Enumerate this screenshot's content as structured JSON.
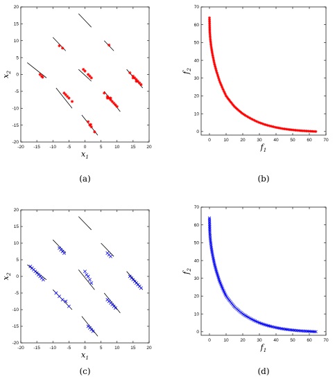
{
  "figure": {
    "panels": [
      {
        "id": "a",
        "caption": "(a)",
        "kind": "decision",
        "color": "#ff0000",
        "marker": "star",
        "xlabel": "x1",
        "ylabel": "x2"
      },
      {
        "id": "b",
        "caption": "(b)",
        "kind": "front",
        "color": "#ff0000",
        "marker": "star",
        "xlabel": "f1",
        "ylabel": "f2"
      },
      {
        "id": "c",
        "caption": "(c)",
        "kind": "decision",
        "color": "#0000ff",
        "marker": "x",
        "xlabel": "x1",
        "ylabel": "x2"
      },
      {
        "id": "d",
        "caption": "(d)",
        "kind": "front",
        "color": "#0000ff",
        "marker": "x",
        "xlabel": "f1",
        "ylabel": "f2"
      }
    ]
  },
  "chart_data": [
    {
      "panel": "a",
      "type": "scatter",
      "xlabel": "x1",
      "ylabel": "x2",
      "xlim": [
        -20,
        20
      ],
      "ylim": [
        -20,
        20
      ],
      "xticks": [
        -20,
        -15,
        -10,
        -5,
        0,
        5,
        10,
        15,
        20
      ],
      "yticks": [
        -20,
        -15,
        -10,
        -5,
        0,
        5,
        10,
        15,
        20
      ],
      "line_segments": [
        [
          [
            -2,
            18
          ],
          [
            2,
            14
          ]
        ],
        [
          [
            -10,
            11
          ],
          [
            -6,
            7
          ]
        ],
        [
          [
            6,
            10
          ],
          [
            9,
            7
          ]
        ],
        [
          [
            -18,
            3.5
          ],
          [
            -12,
            -1
          ]
        ],
        [
          [
            -2,
            1.5
          ],
          [
            2,
            -2
          ]
        ],
        [
          [
            13,
            1.5
          ],
          [
            18,
            -4
          ]
        ],
        [
          [
            -9,
            -4
          ],
          [
            -4,
            -10
          ]
        ],
        [
          [
            6,
            -5
          ],
          [
            11,
            -11
          ]
        ],
        [
          [
            -1,
            -12
          ],
          [
            4,
            -18
          ]
        ]
      ],
      "series": [
        {
          "color": "#ff0000",
          "marker": "star",
          "points": [
            [
              -8,
              8.5
            ],
            [
              -7,
              7.8
            ],
            [
              7.5,
              8.7
            ],
            [
              -13.5,
              -0.5
            ],
            [
              -14,
              0
            ],
            [
              -13.2,
              -0.8
            ],
            [
              0,
              1
            ],
            [
              -0.5,
              1.5
            ],
            [
              1,
              0
            ],
            [
              2,
              -1
            ],
            [
              1.5,
              -0.5
            ],
            [
              14,
              0.5
            ],
            [
              15,
              -0.5
            ],
            [
              15.5,
              -1
            ],
            [
              16,
              -1.5
            ],
            [
              16.5,
              -2
            ],
            [
              17,
              -2.5
            ],
            [
              16,
              -2
            ],
            [
              15,
              -1
            ],
            [
              17.5,
              -3
            ],
            [
              -6,
              -6
            ],
            [
              -6.5,
              -5.5
            ],
            [
              -5,
              -7
            ],
            [
              -4,
              -8
            ],
            [
              -5.5,
              -6.5
            ],
            [
              6,
              -5.5
            ],
            [
              7,
              -6.5
            ],
            [
              7.5,
              -7
            ],
            [
              8,
              -7.5
            ],
            [
              8.5,
              -8
            ],
            [
              9,
              -8.5
            ],
            [
              8,
              -7
            ],
            [
              9.5,
              -9
            ],
            [
              10,
              -9.5
            ],
            [
              7,
              -7
            ],
            [
              1,
              -14
            ],
            [
              1.5,
              -15
            ],
            [
              2,
              -15.5
            ],
            [
              1.8,
              -14.8
            ],
            [
              3,
              -17
            ]
          ]
        }
      ]
    },
    {
      "panel": "b",
      "type": "line",
      "xlabel": "f1",
      "ylabel": "f2",
      "xlim": [
        -5,
        70
      ],
      "ylim": [
        -2,
        70
      ],
      "xticks": [
        0,
        10,
        20,
        30,
        40,
        50,
        60,
        70
      ],
      "yticks": [
        0,
        10,
        20,
        30,
        40,
        50,
        60,
        70
      ],
      "series": [
        {
          "color": "#ff0000",
          "marker": "star",
          "x": [
            0,
            0.2,
            0.5,
            1,
            1.5,
            2,
            3,
            4,
            5,
            6,
            8,
            10,
            12,
            15,
            18,
            20,
            22,
            25,
            28,
            30,
            33,
            36,
            40,
            44,
            48,
            52,
            56,
            60,
            64
          ],
          "y": [
            64,
            56,
            52,
            48,
            45,
            42.5,
            38,
            34.5,
            31.5,
            28.5,
            24,
            20,
            17.5,
            14,
            11.5,
            10,
            8.8,
            7.2,
            5.8,
            5,
            4,
            3.2,
            2.3,
            1.6,
            1.1,
            0.7,
            0.4,
            0.2,
            0
          ]
        }
      ]
    },
    {
      "panel": "c",
      "type": "scatter",
      "xlabel": "x1",
      "ylabel": "x2",
      "xlim": [
        -20,
        20
      ],
      "ylim": [
        -20,
        20
      ],
      "xticks": [
        -20,
        -15,
        -10,
        -5,
        0,
        5,
        10,
        15,
        20
      ],
      "yticks": [
        -20,
        -15,
        -10,
        -5,
        0,
        5,
        10,
        15,
        20
      ],
      "line_segments": [
        [
          [
            -2,
            18
          ],
          [
            2,
            14
          ]
        ],
        [
          [
            -10,
            11
          ],
          [
            -6,
            7
          ]
        ],
        [
          [
            5,
            10
          ],
          [
            9,
            6
          ]
        ],
        [
          [
            -18,
            3.5
          ],
          [
            -12,
            -1
          ]
        ],
        [
          [
            -2,
            2
          ],
          [
            3,
            -4
          ]
        ],
        [
          [
            13,
            1.5
          ],
          [
            18,
            -4
          ]
        ],
        [
          [
            -10,
            -4
          ],
          [
            -4,
            -10
          ]
        ],
        [
          [
            6,
            -5
          ],
          [
            11,
            -11
          ]
        ],
        [
          [
            -1,
            -12
          ],
          [
            4,
            -18
          ]
        ]
      ],
      "series": [
        {
          "color": "#0000ff",
          "marker": "x",
          "points": [
            [
              -8,
              8.5
            ],
            [
              -7.5,
              8
            ],
            [
              -7,
              7.5
            ],
            [
              -6.5,
              7
            ],
            [
              7,
              7
            ],
            [
              7.5,
              6.5
            ],
            [
              8,
              6
            ],
            [
              -17,
              3
            ],
            [
              -16.5,
              2.5
            ],
            [
              -16,
              2
            ],
            [
              -15.5,
              1.5
            ],
            [
              -15,
              1
            ],
            [
              -14.5,
              0.5
            ],
            [
              -14,
              0
            ],
            [
              -13.5,
              -0.5
            ],
            [
              -13,
              -1
            ],
            [
              0,
              1.5
            ],
            [
              0.5,
              0.5
            ],
            [
              1,
              0
            ],
            [
              1.5,
              -1
            ],
            [
              2,
              -2
            ],
            [
              14,
              0
            ],
            [
              14.5,
              -0.5
            ],
            [
              15,
              -1
            ],
            [
              15.5,
              -1.5
            ],
            [
              16,
              -2
            ],
            [
              16.5,
              -2.5
            ],
            [
              17,
              -3
            ],
            [
              17.5,
              -3.5
            ],
            [
              -9,
              -5
            ],
            [
              -8,
              -6
            ],
            [
              -7,
              -7
            ],
            [
              -6,
              -7.5
            ],
            [
              -5,
              -9
            ],
            [
              7,
              -7
            ],
            [
              7.5,
              -7.5
            ],
            [
              8,
              -8
            ],
            [
              8.5,
              -8.5
            ],
            [
              9,
              -9
            ],
            [
              9.5,
              -9.5
            ],
            [
              1,
              -15
            ],
            [
              1.5,
              -15.5
            ],
            [
              2,
              -16
            ],
            [
              2.5,
              -16.5
            ]
          ]
        }
      ]
    },
    {
      "panel": "d",
      "type": "line",
      "xlabel": "f1",
      "ylabel": "f2",
      "xlim": [
        -5,
        70
      ],
      "ylim": [
        -2,
        70
      ],
      "xticks": [
        0,
        10,
        20,
        30,
        40,
        50,
        60,
        70
      ],
      "yticks": [
        0,
        10,
        20,
        30,
        40,
        50,
        60,
        70
      ],
      "series": [
        {
          "color": "#0000ff",
          "marker": "x",
          "x": [
            0,
            0.2,
            0.5,
            1,
            1.5,
            2,
            3,
            4,
            5,
            6,
            8,
            10,
            12,
            15,
            18,
            20,
            22,
            25,
            28,
            30,
            33,
            36,
            40,
            44,
            48,
            52,
            56,
            60,
            64
          ],
          "y": [
            64,
            56,
            52,
            48,
            45,
            42.5,
            38,
            34.5,
            31.5,
            28.5,
            24,
            20,
            17.5,
            14,
            11.5,
            10,
            8.8,
            7.2,
            5.8,
            5,
            4,
            3.2,
            2.3,
            1.6,
            1.1,
            0.7,
            0.4,
            0.2,
            0
          ]
        }
      ]
    }
  ]
}
